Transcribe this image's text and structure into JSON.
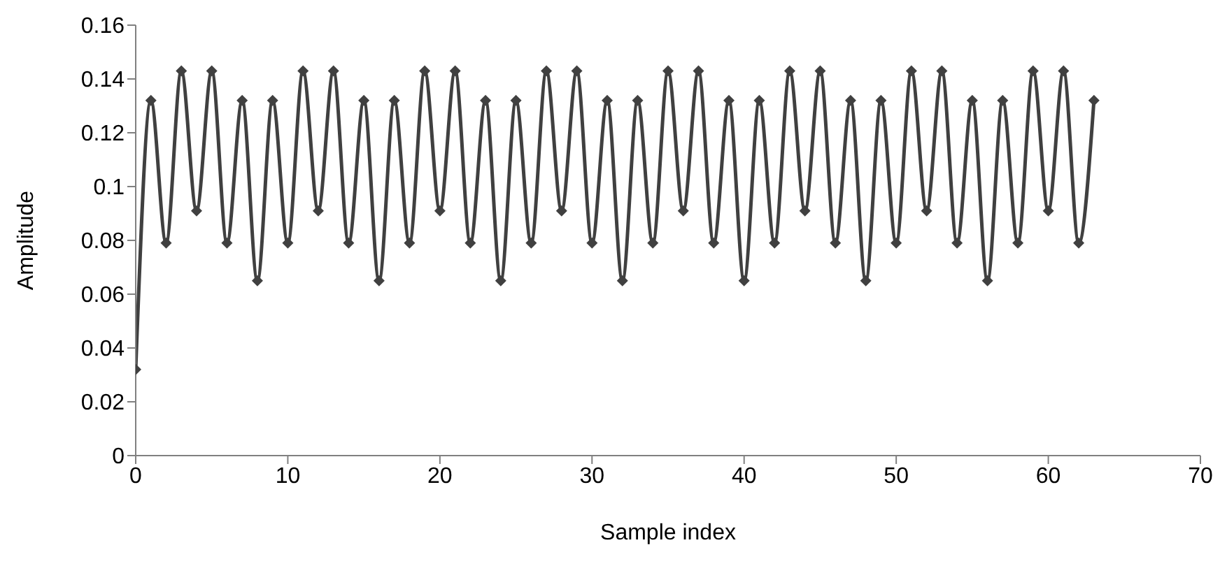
{
  "chart_data": {
    "type": "line",
    "xlabel": "Sample index",
    "ylabel": "Amplitude",
    "x": [
      0,
      1,
      2,
      3,
      4,
      5,
      6,
      7,
      8,
      9,
      10,
      11,
      12,
      13,
      14,
      15,
      16,
      17,
      18,
      19,
      20,
      21,
      22,
      23,
      24,
      25,
      26,
      27,
      28,
      29,
      30,
      31,
      32,
      33,
      34,
      35,
      36,
      37,
      38,
      39,
      40,
      41,
      42,
      43,
      44,
      45,
      46,
      47,
      48,
      49,
      50,
      51,
      52,
      53,
      54,
      55,
      56,
      57,
      58,
      59,
      60,
      61,
      62,
      63
    ],
    "series": [
      {
        "color": "#404040",
        "values": [
          0.032,
          0.132,
          0.079,
          0.143,
          0.091,
          0.143,
          0.079,
          0.132,
          0.065,
          0.132,
          0.079,
          0.143,
          0.091,
          0.143,
          0.079,
          0.132,
          0.065,
          0.132,
          0.079,
          0.143,
          0.091,
          0.143,
          0.079,
          0.132,
          0.065,
          0.132,
          0.079,
          0.143,
          0.091,
          0.143,
          0.079,
          0.132,
          0.065,
          0.132,
          0.079,
          0.143,
          0.091,
          0.143,
          0.079,
          0.132,
          0.065,
          0.132,
          0.079,
          0.143,
          0.091,
          0.143,
          0.079,
          0.132,
          0.065,
          0.132,
          0.079,
          0.143,
          0.091,
          0.143,
          0.079,
          0.132,
          0.065,
          0.132,
          0.079,
          0.143,
          0.091,
          0.143,
          0.079,
          0.132
        ]
      }
    ],
    "xlim": [
      0,
      70
    ],
    "xticks": [
      0,
      10,
      20,
      30,
      40,
      50,
      60,
      70
    ],
    "ylim": [
      0,
      0.16
    ],
    "yticks": [
      0,
      0.02,
      0.04,
      0.06,
      0.08,
      0.1,
      0.12,
      0.14,
      0.16
    ],
    "grid": false,
    "legend": false,
    "marker": "diamond",
    "line_style": "solid"
  }
}
